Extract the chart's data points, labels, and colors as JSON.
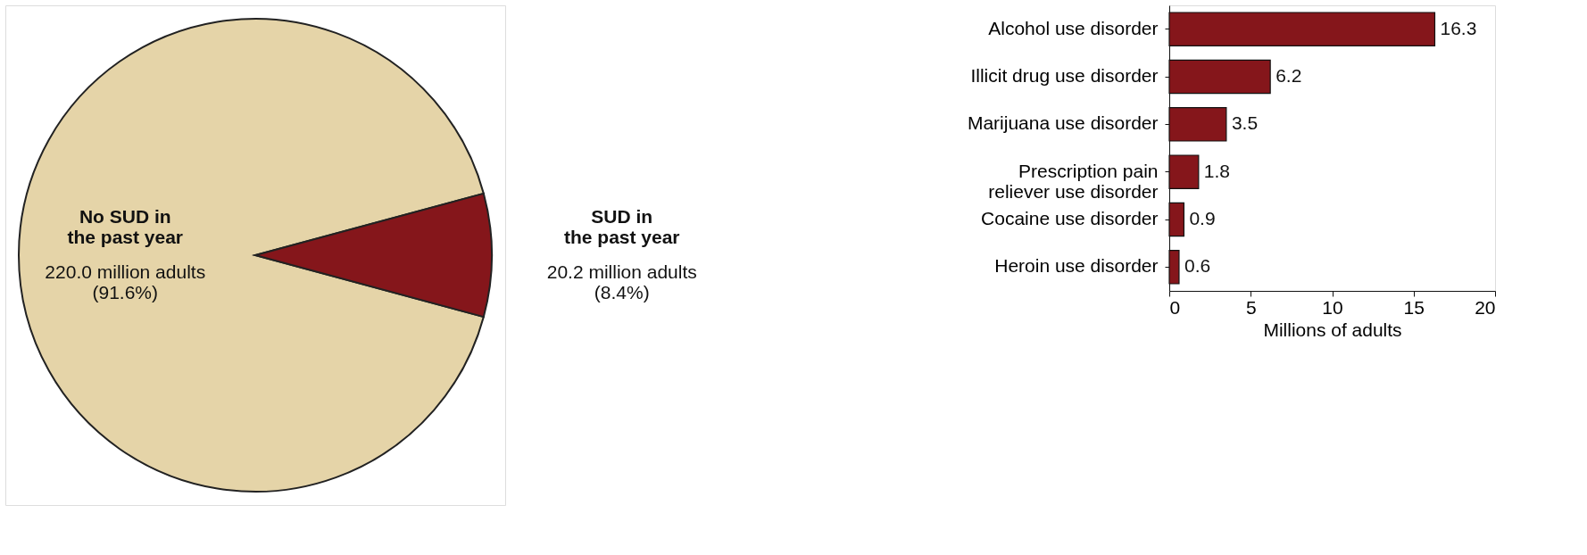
{
  "chart_data": [
    {
      "type": "pie",
      "categories": [
        "No SUD in\nthe past year",
        "SUD in\nthe past year"
      ],
      "values": [
        91.6,
        8.4
      ],
      "colors": [
        "#e5d4a8",
        "#85161b"
      ],
      "value_labels": [
        "220.0 million adults\n(91.6%)",
        "20.2 million adults\n(8.4%)"
      ]
    },
    {
      "type": "bar",
      "orientation": "horizontal",
      "categories": [
        "Alcohol use disorder",
        "Illicit drug use disorder",
        "Marijuana use disorder",
        "Prescription pain\nreliever use disorder",
        "Cocaine use disorder",
        "Heroin use disorder"
      ],
      "values": [
        16.3,
        6.2,
        3.5,
        1.8,
        0.9,
        0.6
      ],
      "color": "#85161b",
      "xlim": [
        0,
        20
      ],
      "xticks": [
        0,
        5,
        10,
        15,
        20
      ],
      "xlabel": "Millions of adults",
      "data_labels": true,
      "grid": false
    }
  ]
}
